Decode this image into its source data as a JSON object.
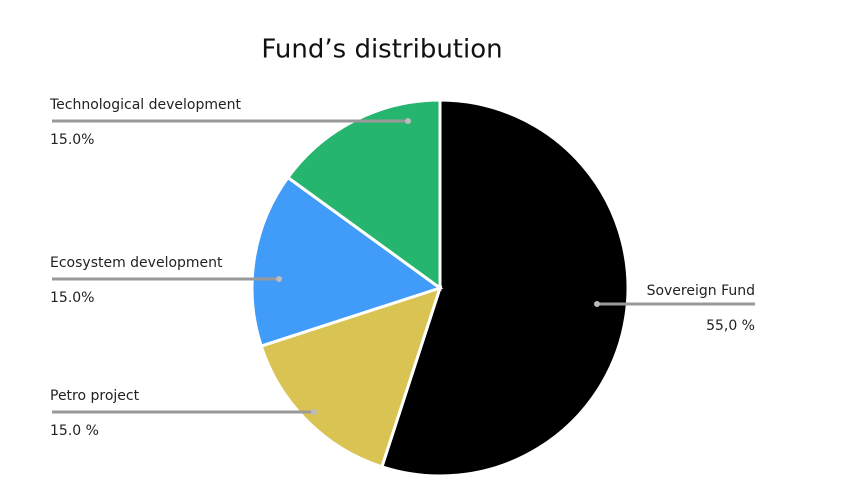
{
  "chart_data": {
    "type": "pie",
    "title": "Fund’s distribution",
    "categories": [
      "Sovereign Fund",
      "Petro project",
      "Ecosystem development",
      "Technological development"
    ],
    "values": [
      55,
      15,
      15,
      15
    ],
    "value_labels": [
      "55,0 %",
      "15.0 %",
      "15.0%",
      "15.0%"
    ],
    "colors": [
      "#000000",
      "#d9c453",
      "#419bf9",
      "#26b56e"
    ]
  }
}
